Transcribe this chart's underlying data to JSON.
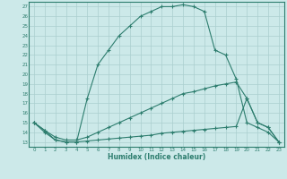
{
  "line1_x": [
    0,
    1,
    2,
    3,
    4,
    5,
    6,
    7,
    8,
    9,
    10,
    11,
    12,
    13,
    14,
    15,
    16,
    17,
    18,
    19,
    20,
    21,
    22,
    23
  ],
  "line1_y": [
    15,
    14.2,
    13.2,
    13,
    13,
    17.5,
    21,
    22.5,
    24,
    25,
    26,
    26.5,
    27,
    27,
    27.2,
    27,
    26.5,
    22.5,
    22,
    19.5,
    15,
    14.5,
    14,
    13
  ],
  "line2_x": [
    0,
    1,
    2,
    3,
    4,
    5,
    6,
    7,
    8,
    9,
    10,
    11,
    12,
    13,
    14,
    15,
    16,
    17,
    18,
    19,
    20,
    21,
    22,
    23
  ],
  "line2_y": [
    15,
    14.2,
    13.5,
    13.2,
    13.2,
    13.5,
    14,
    14.5,
    15,
    15.5,
    16,
    16.5,
    17,
    17.5,
    18,
    18.2,
    18.5,
    18.8,
    19,
    19.2,
    17.5,
    15,
    14.5,
    13
  ],
  "line3_x": [
    0,
    1,
    2,
    3,
    4,
    5,
    6,
    7,
    8,
    9,
    10,
    11,
    12,
    13,
    14,
    15,
    16,
    17,
    18,
    19,
    20,
    21,
    22,
    23
  ],
  "line3_y": [
    15,
    14,
    13.2,
    13,
    13,
    13.1,
    13.2,
    13.3,
    13.4,
    13.5,
    13.6,
    13.7,
    13.9,
    14.0,
    14.1,
    14.2,
    14.3,
    14.4,
    14.5,
    14.6,
    17.5,
    15,
    14.5,
    13
  ],
  "color": "#2d7d6e",
  "bg_color": "#cce9e9",
  "grid_color": "#aacfcf",
  "xlabel": "Humidex (Indice chaleur)",
  "ylim_min": 12.5,
  "ylim_max": 27.5,
  "xlim_min": -0.5,
  "xlim_max": 23.5,
  "yticks": [
    13,
    14,
    15,
    16,
    17,
    18,
    19,
    20,
    21,
    22,
    23,
    24,
    25,
    26,
    27
  ],
  "xticks": [
    0,
    1,
    2,
    3,
    4,
    5,
    6,
    7,
    8,
    9,
    10,
    11,
    12,
    13,
    14,
    15,
    16,
    17,
    18,
    19,
    20,
    21,
    22,
    23
  ]
}
